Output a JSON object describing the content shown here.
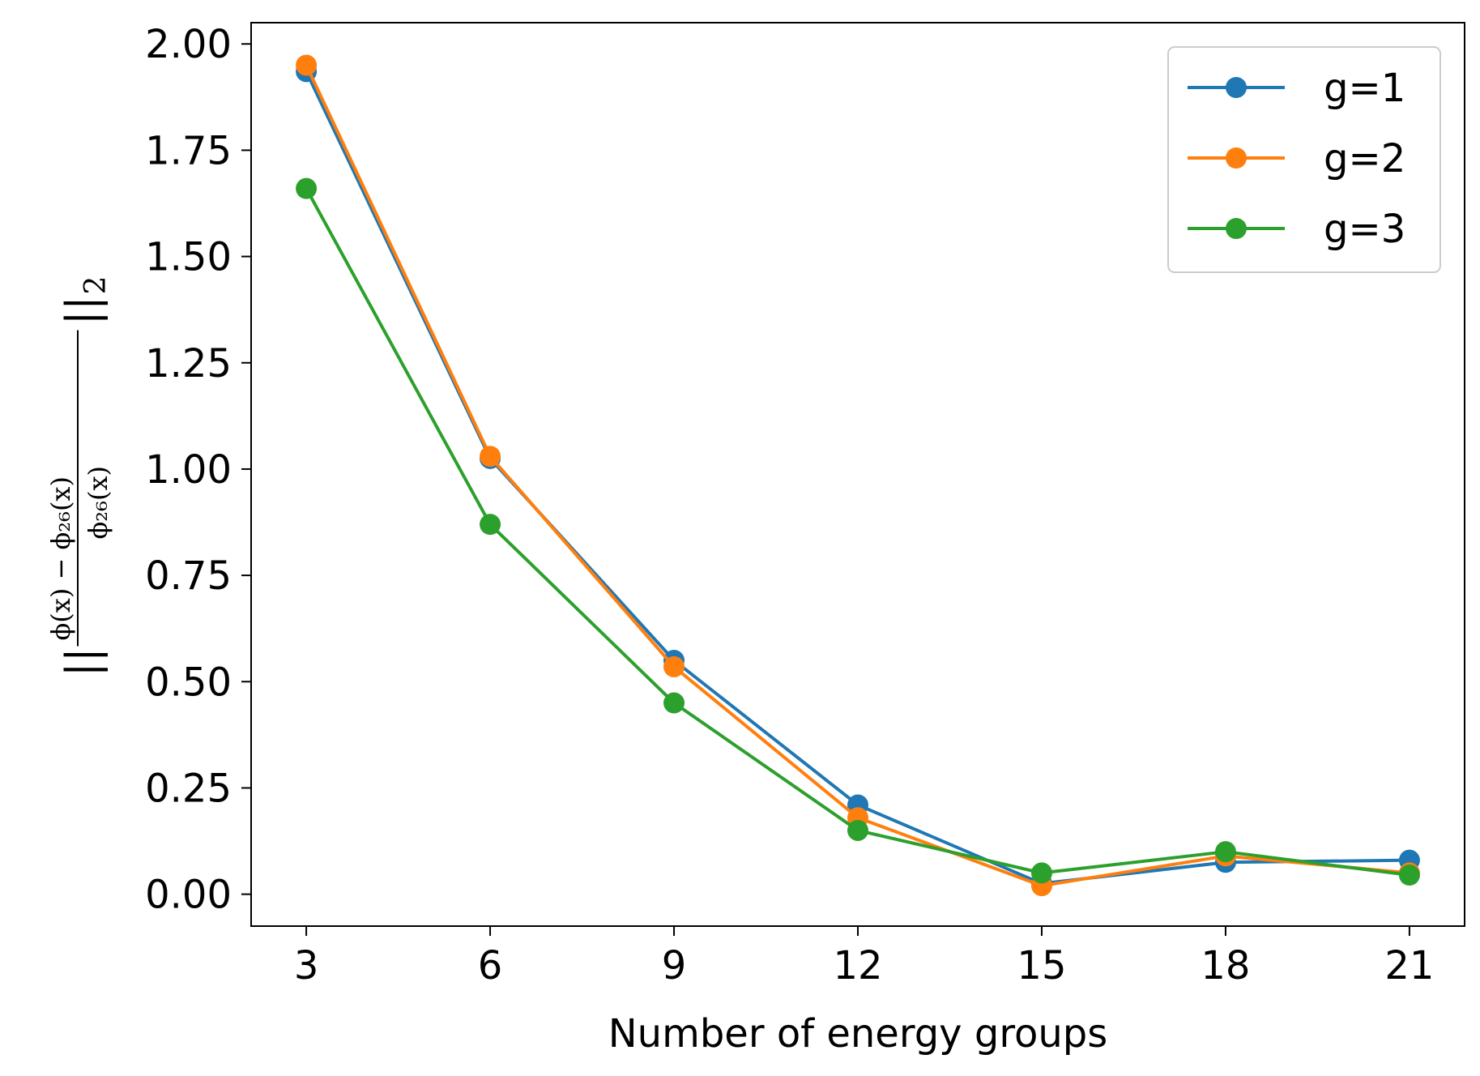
{
  "chart_data": {
    "type": "line",
    "title": "",
    "xlabel": "Number of energy groups",
    "ylabel": {
      "bars_left": "||",
      "numerator": "ϕ(x) − ϕ₂₆(x)",
      "denominator": "ϕ₂₆(x)",
      "bars_right": "||",
      "subscript": "2"
    },
    "x": [
      3,
      6,
      9,
      12,
      15,
      18,
      21
    ],
    "xticks": [
      "3",
      "6",
      "9",
      "12",
      "15",
      "18",
      "21"
    ],
    "yticks": [
      "0.00",
      "0.25",
      "0.50",
      "0.75",
      "1.00",
      "1.25",
      "1.50",
      "1.75",
      "2.00"
    ],
    "ytick_values": [
      0,
      0.25,
      0.5,
      0.75,
      1.0,
      1.25,
      1.5,
      1.75,
      2.0
    ],
    "xlim": [
      2.1,
      21.9
    ],
    "ylim": [
      -0.075,
      2.05
    ],
    "grid": false,
    "legend_position": "top-right",
    "series": [
      {
        "name": "g=1",
        "color": "#1f77b4",
        "values": [
          1.935,
          1.025,
          0.55,
          0.21,
          0.025,
          0.075,
          0.08
        ]
      },
      {
        "name": "g=2",
        "color": "#ff7f0e",
        "values": [
          1.95,
          1.03,
          0.535,
          0.18,
          0.02,
          0.09,
          0.05
        ]
      },
      {
        "name": "g=3",
        "color": "#2ca02c",
        "values": [
          1.66,
          0.87,
          0.45,
          0.15,
          0.05,
          0.1,
          0.045
        ]
      }
    ]
  }
}
